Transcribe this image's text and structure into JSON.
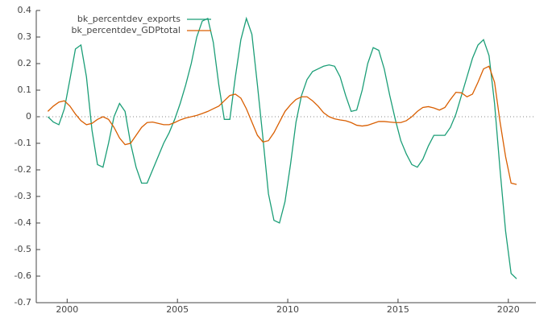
{
  "chart_data": {
    "type": "line",
    "x": [
      1999.125,
      1999.375,
      1999.625,
      1999.875,
      2000.125,
      2000.375,
      2000.625,
      2000.875,
      2001.125,
      2001.375,
      2001.625,
      2001.875,
      2002.125,
      2002.375,
      2002.625,
      2002.875,
      2003.125,
      2003.375,
      2003.625,
      2003.875,
      2004.125,
      2004.375,
      2004.625,
      2004.875,
      2005.125,
      2005.375,
      2005.625,
      2005.875,
      2006.125,
      2006.375,
      2006.625,
      2006.875,
      2007.125,
      2007.375,
      2007.625,
      2007.875,
      2008.125,
      2008.375,
      2008.625,
      2008.875,
      2009.125,
      2009.375,
      2009.625,
      2009.875,
      2010.125,
      2010.375,
      2010.625,
      2010.875,
      2011.125,
      2011.375,
      2011.625,
      2011.875,
      2012.125,
      2012.375,
      2012.625,
      2012.875,
      2013.125,
      2013.375,
      2013.625,
      2013.875,
      2014.125,
      2014.375,
      2014.625,
      2014.875,
      2015.125,
      2015.375,
      2015.625,
      2015.875,
      2016.125,
      2016.375,
      2016.625,
      2016.875,
      2017.125,
      2017.375,
      2017.625,
      2017.875,
      2018.125,
      2018.375,
      2018.625,
      2018.875,
      2019.125,
      2019.375,
      2019.625,
      2019.875,
      2020.125,
      2020.375
    ],
    "series": [
      {
        "name": "bk_percentdev_exports",
        "color": "#1b9e77",
        "values": [
          0,
          -0.02,
          -0.03,
          0.03,
          0.14,
          0.255,
          0.27,
          0.15,
          -0.05,
          -0.18,
          -0.19,
          -0.1,
          0.0,
          0.05,
          0.02,
          -0.1,
          -0.19,
          -0.25,
          -0.25,
          -0.2,
          -0.15,
          -0.1,
          -0.06,
          -0.01,
          0.05,
          0.12,
          0.2,
          0.3,
          0.36,
          0.37,
          0.28,
          0.12,
          -0.01,
          -0.01,
          0.15,
          0.29,
          0.37,
          0.31,
          0.12,
          -0.08,
          -0.29,
          -0.39,
          -0.4,
          -0.32,
          -0.18,
          -0.02,
          0.08,
          0.14,
          0.17,
          0.18,
          0.19,
          0.195,
          0.19,
          0.15,
          0.08,
          0.02,
          0.025,
          0.1,
          0.2,
          0.26,
          0.25,
          0.18,
          0.08,
          -0.01,
          -0.09,
          -0.14,
          -0.18,
          -0.19,
          -0.16,
          -0.11,
          -0.07,
          -0.07,
          -0.07,
          -0.04,
          0.01,
          0.08,
          0.15,
          0.22,
          0.27,
          0.29,
          0.23,
          0.05,
          -0.2,
          -0.43,
          -0.59,
          -0.61
        ]
      },
      {
        "name": "bk_percentdev_GDPtotal",
        "color": "#d95f02",
        "values": [
          0.02,
          0.04,
          0.055,
          0.06,
          0.04,
          0.01,
          -0.015,
          -0.03,
          -0.025,
          -0.01,
          0.0,
          -0.01,
          -0.04,
          -0.08,
          -0.105,
          -0.1,
          -0.07,
          -0.04,
          -0.022,
          -0.02,
          -0.025,
          -0.03,
          -0.03,
          -0.022,
          -0.012,
          -0.005,
          0.0,
          0.005,
          0.012,
          0.02,
          0.03,
          0.04,
          0.06,
          0.08,
          0.085,
          0.07,
          0.03,
          -0.02,
          -0.07,
          -0.095,
          -0.09,
          -0.06,
          -0.02,
          0.02,
          0.045,
          0.065,
          0.075,
          0.075,
          0.06,
          0.04,
          0.015,
          0.0,
          -0.008,
          -0.012,
          -0.015,
          -0.022,
          -0.032,
          -0.035,
          -0.032,
          -0.025,
          -0.018,
          -0.018,
          -0.02,
          -0.022,
          -0.022,
          -0.015,
          0.0,
          0.02,
          0.035,
          0.038,
          0.033,
          0.025,
          0.035,
          0.065,
          0.092,
          0.09,
          0.075,
          0.085,
          0.13,
          0.18,
          0.19,
          0.13,
          -0.02,
          -0.15,
          -0.25,
          -0.255
        ]
      }
    ],
    "xlim": [
      1998.6,
      2021.25
    ],
    "xticks": [
      2000,
      2005,
      2010,
      2015,
      2020
    ],
    "ylim": [
      -0.7,
      0.4
    ],
    "yticks": [
      -0.7,
      -0.6,
      -0.5,
      -0.4,
      -0.3,
      -0.2,
      -0.1,
      0,
      0.1,
      0.2,
      0.3,
      0.4
    ],
    "zero_line": true,
    "legend": "top-left"
  }
}
